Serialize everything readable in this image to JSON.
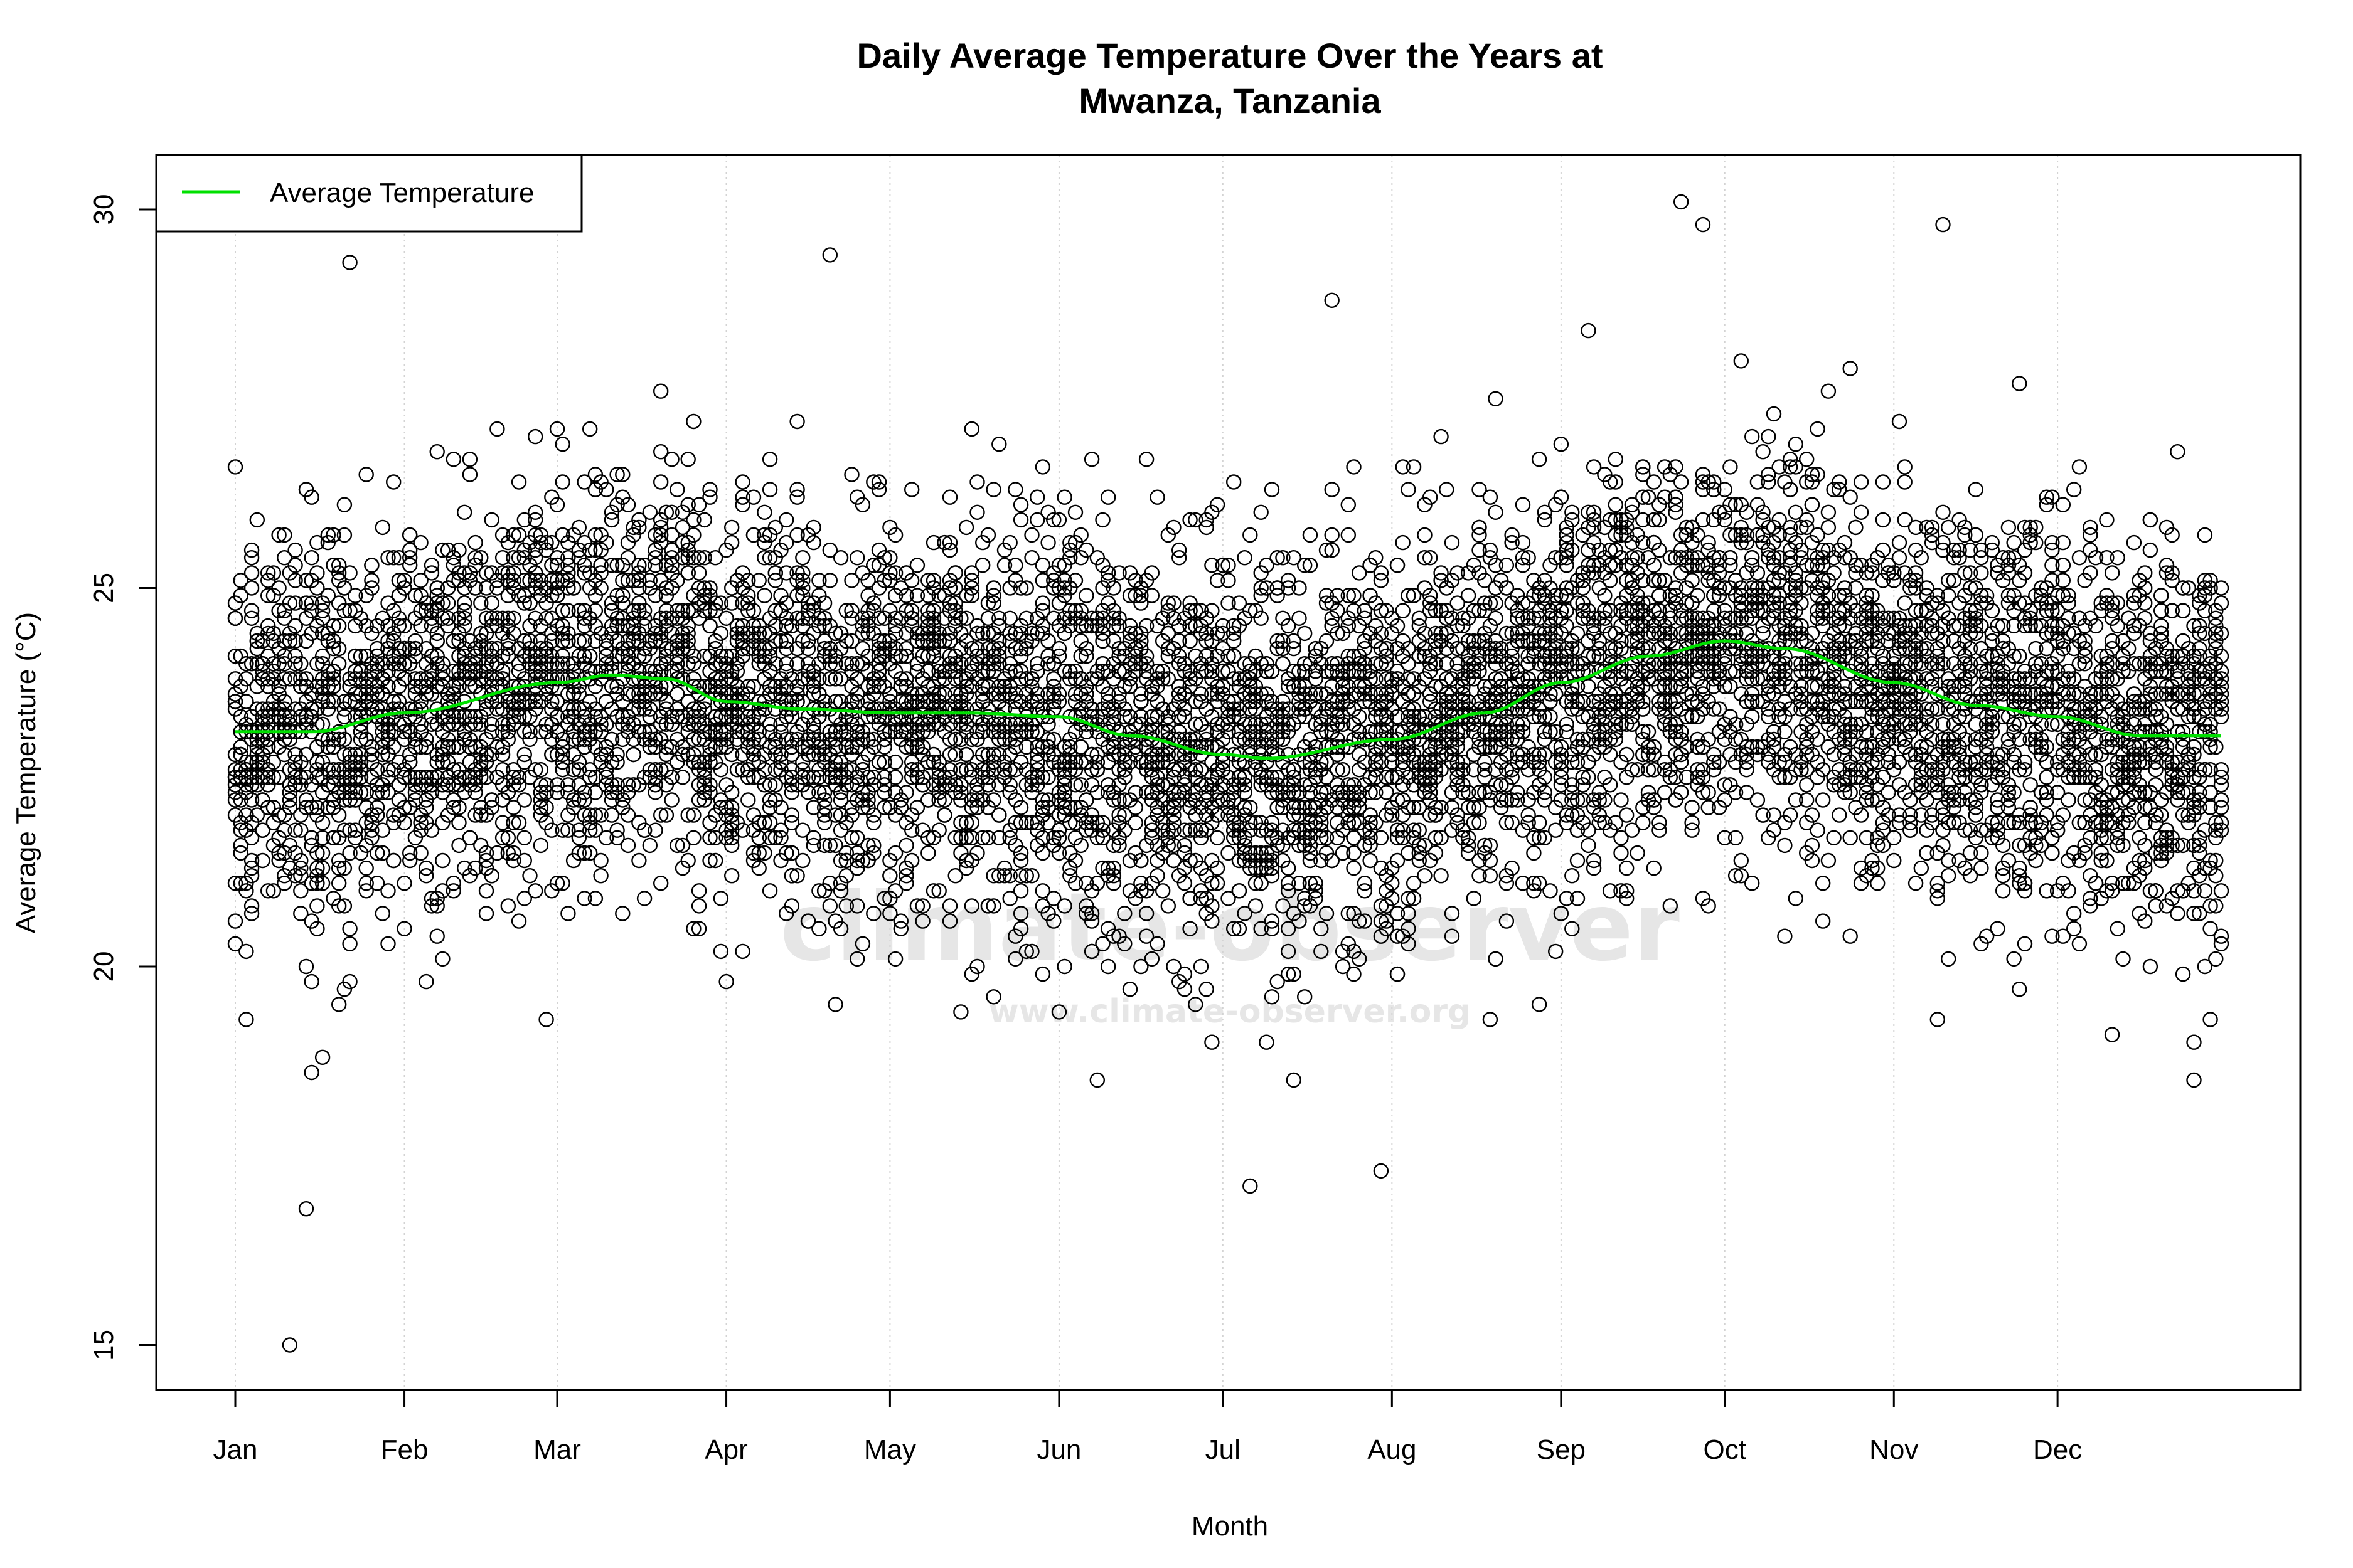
{
  "chart_data": {
    "type": "scatter",
    "title": "Daily Average Temperature Over the Years at",
    "title_line2": "Mwanza, Tanzania",
    "xlabel": "Month",
    "ylabel": "Average Temperature (°C)",
    "ylim": [
      14.4,
      30.7
    ],
    "yticks": [
      15,
      20,
      25,
      30
    ],
    "x_unit": "day of year",
    "xlim": [
      1,
      365
    ],
    "xticks": [
      {
        "label": "Jan",
        "day": 1
      },
      {
        "label": "Feb",
        "day": 32
      },
      {
        "label": "Mar",
        "day": 60
      },
      {
        "label": "Apr",
        "day": 91
      },
      {
        "label": "May",
        "day": 121
      },
      {
        "label": "Jun",
        "day": 152
      },
      {
        "label": "Jul",
        "day": 182
      },
      {
        "label": "Aug",
        "day": 213
      },
      {
        "label": "Sep",
        "day": 244
      },
      {
        "label": "Oct",
        "day": 274
      },
      {
        "label": "Nov",
        "day": 305
      },
      {
        "label": "Dec",
        "day": 335
      }
    ],
    "grid": "vertical dotted at month ticks",
    "legend": {
      "placement": "top-left",
      "entries": [
        {
          "label": "Average Temperature",
          "color": "#00e000"
        }
      ]
    },
    "point_marker": "open circle",
    "point_color": "#000000",
    "series": [
      {
        "name": "Average Temperature",
        "type": "line",
        "color": "#00e000",
        "points": [
          [
            1,
            23.1
          ],
          [
            15,
            23.1
          ],
          [
            32,
            23.35
          ],
          [
            60,
            23.75
          ],
          [
            70,
            23.85
          ],
          [
            80,
            23.8
          ],
          [
            91,
            23.5
          ],
          [
            105,
            23.4
          ],
          [
            121,
            23.35
          ],
          [
            135,
            23.35
          ],
          [
            152,
            23.3
          ],
          [
            165,
            23.05
          ],
          [
            182,
            22.8
          ],
          [
            190,
            22.75
          ],
          [
            213,
            23.0
          ],
          [
            230,
            23.35
          ],
          [
            244,
            23.75
          ],
          [
            260,
            24.1
          ],
          [
            274,
            24.3
          ],
          [
            285,
            24.2
          ],
          [
            305,
            23.75
          ],
          [
            320,
            23.45
          ],
          [
            335,
            23.3
          ],
          [
            350,
            23.05
          ],
          [
            365,
            23.05
          ]
        ]
      }
    ],
    "extreme_points": [
      [
        11,
        15.0
      ],
      [
        14,
        16.8
      ],
      [
        22,
        29.3
      ],
      [
        110,
        29.4
      ],
      [
        266,
        30.1
      ],
      [
        270,
        29.8
      ],
      [
        314,
        29.8
      ],
      [
        187,
        17.1
      ],
      [
        211,
        17.3
      ],
      [
        202,
        28.8
      ]
    ],
    "watermark": "climate-observer",
    "watermark_url": "www.climate-observer.org"
  }
}
